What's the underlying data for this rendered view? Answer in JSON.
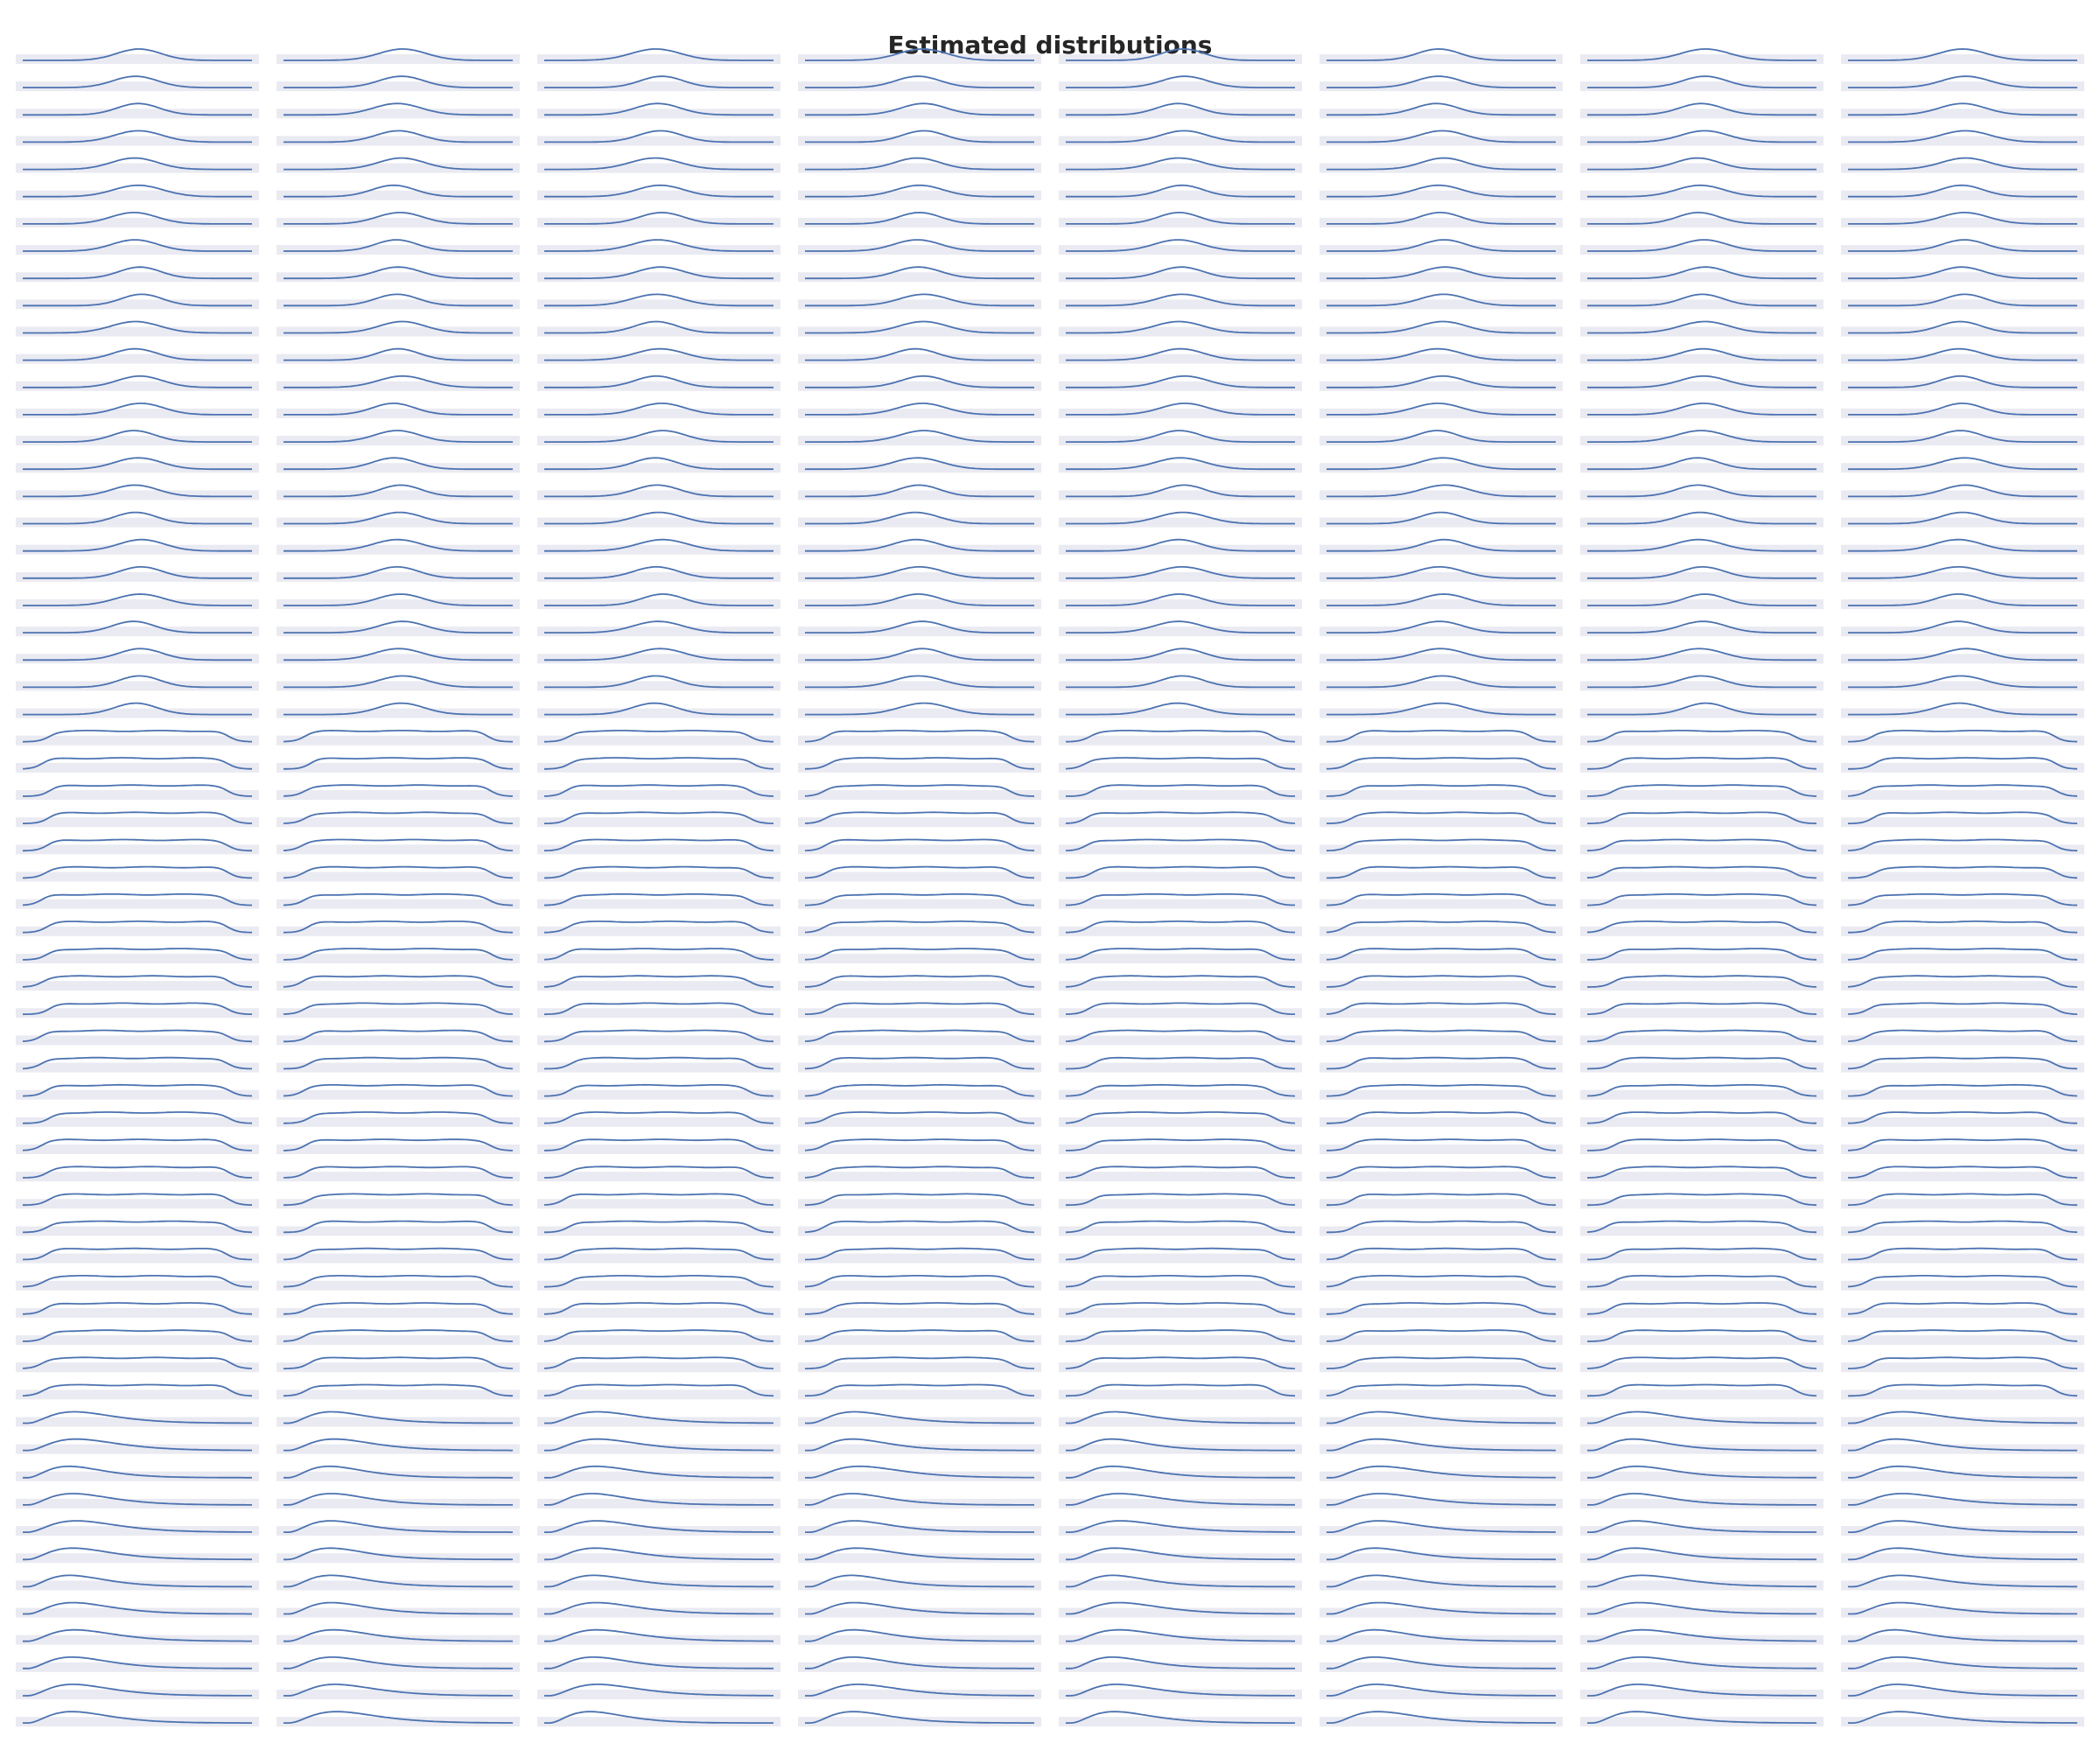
{
  "page": {
    "title": "Estimated distributions"
  },
  "colors": {
    "panel_background": "#eaeaf2",
    "curve": "#4c72b0",
    "title_text": "#262626",
    "page_background": "#ffffff"
  },
  "chart_data": {
    "type": "small-multiples-density",
    "title": "Estimated distributions",
    "grid": {
      "columns": 8,
      "rows": 62
    },
    "axes_visible": false,
    "tick_labels": "none",
    "curve_style": "line",
    "x_domain": [
      0,
      1
    ],
    "groups": [
      {
        "shape": "normal",
        "row_range": [
          1,
          25
        ],
        "center": 0.5,
        "spread": 0.1
      },
      {
        "shape": "uniform",
        "row_range": [
          26,
          50
        ],
        "lower": 0.1,
        "upper": 0.9
      },
      {
        "shape": "right-skewed",
        "row_range": [
          51,
          62
        ],
        "mode": 0.22
      }
    ]
  }
}
